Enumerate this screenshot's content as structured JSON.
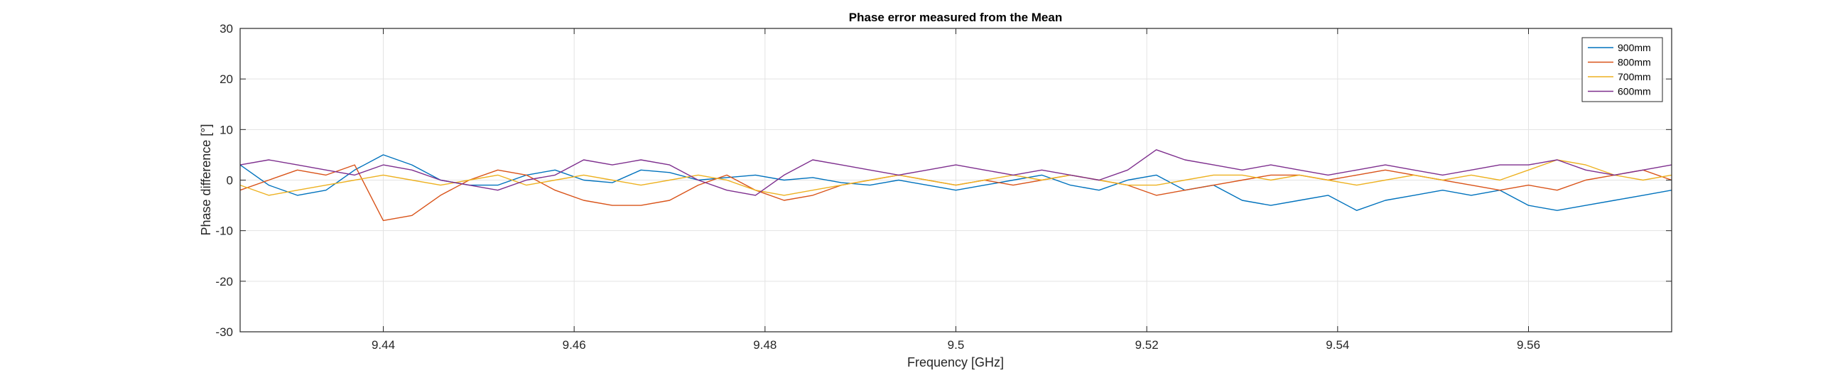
{
  "chart_data": {
    "type": "line",
    "title": "Phase error measured from the Mean",
    "xlabel": "Frequency [GHz]",
    "ylabel": "Phase difference [°]",
    "xlim": [
      9.425,
      9.575
    ],
    "ylim": [
      -30,
      30
    ],
    "xticks": [
      9.44,
      9.46,
      9.48,
      9.5,
      9.52,
      9.54,
      9.56
    ],
    "xtick_labels": [
      "9.44",
      "9.46",
      "9.48",
      "9.5",
      "9.52",
      "9.54",
      "9.56"
    ],
    "yticks": [
      -30,
      -20,
      -10,
      0,
      10,
      20,
      30
    ],
    "ytick_labels": [
      "-30",
      "-20",
      "-10",
      "0",
      "10",
      "20",
      "30"
    ],
    "grid": true,
    "legend_position": "top-right",
    "x": [
      9.425,
      9.428,
      9.431,
      9.434,
      9.437,
      9.44,
      9.443,
      9.446,
      9.449,
      9.452,
      9.455,
      9.458,
      9.461,
      9.464,
      9.467,
      9.47,
      9.473,
      9.476,
      9.479,
      9.482,
      9.485,
      9.488,
      9.491,
      9.494,
      9.497,
      9.5,
      9.503,
      9.506,
      9.509,
      9.512,
      9.515,
      9.518,
      9.521,
      9.524,
      9.527,
      9.53,
      9.533,
      9.536,
      9.539,
      9.542,
      9.545,
      9.548,
      9.551,
      9.554,
      9.557,
      9.56,
      9.563,
      9.566,
      9.569,
      9.572,
      9.575
    ],
    "series": [
      {
        "name": "900mm",
        "color": "#0072BD",
        "values": [
          3,
          -1,
          -3,
          -2,
          2,
          5,
          3,
          0,
          -1,
          -1,
          1,
          2,
          0,
          -0.5,
          2,
          1.5,
          0,
          0.5,
          1,
          0,
          0.5,
          -0.5,
          -1,
          0,
          -1,
          -2,
          -1,
          0,
          1,
          -1,
          -2,
          0,
          1,
          -2,
          -1,
          -4,
          -5,
          -4,
          -3,
          -6,
          -4,
          -3,
          -2,
          -3,
          -2,
          -5,
          -6,
          -5,
          -4,
          -3,
          -2
        ]
      },
      {
        "name": "800mm",
        "color": "#D95319",
        "values": [
          -2,
          0,
          2,
          1,
          3,
          -8,
          -7,
          -3,
          0,
          2,
          1,
          -2,
          -4,
          -5,
          -5,
          -4,
          -1,
          1,
          -2,
          -4,
          -3,
          -1,
          0,
          1,
          0,
          -1,
          0,
          -1,
          0,
          1,
          0,
          -1,
          -3,
          -2,
          -1,
          0,
          1,
          1,
          0,
          1,
          2,
          1,
          0,
          -1,
          -2,
          -1,
          -2,
          0,
          1,
          2,
          0
        ]
      },
      {
        "name": "700mm",
        "color": "#EDB120",
        "values": [
          -1,
          -3,
          -2,
          -1,
          0,
          1,
          0,
          -1,
          0,
          1,
          -1,
          0,
          1,
          0,
          -1,
          0,
          1,
          0,
          -2,
          -3,
          -2,
          -1,
          0,
          1,
          0,
          -1,
          0,
          1,
          0,
          1,
          0,
          -1,
          -1,
          0,
          1,
          1,
          0,
          1,
          0,
          -1,
          0,
          1,
          0,
          1,
          0,
          2,
          4,
          3,
          1,
          0,
          1
        ]
      },
      {
        "name": "600mm",
        "color": "#7E2F8E",
        "values": [
          3,
          4,
          3,
          2,
          1,
          3,
          2,
          0,
          -1,
          -2,
          0,
          1,
          4,
          3,
          4,
          3,
          0,
          -2,
          -3,
          1,
          4,
          3,
          2,
          1,
          2,
          3,
          2,
          1,
          2,
          1,
          0,
          2,
          6,
          4,
          3,
          2,
          3,
          2,
          1,
          2,
          3,
          2,
          1,
          2,
          3,
          3,
          4,
          2,
          1,
          2,
          3
        ]
      }
    ]
  }
}
